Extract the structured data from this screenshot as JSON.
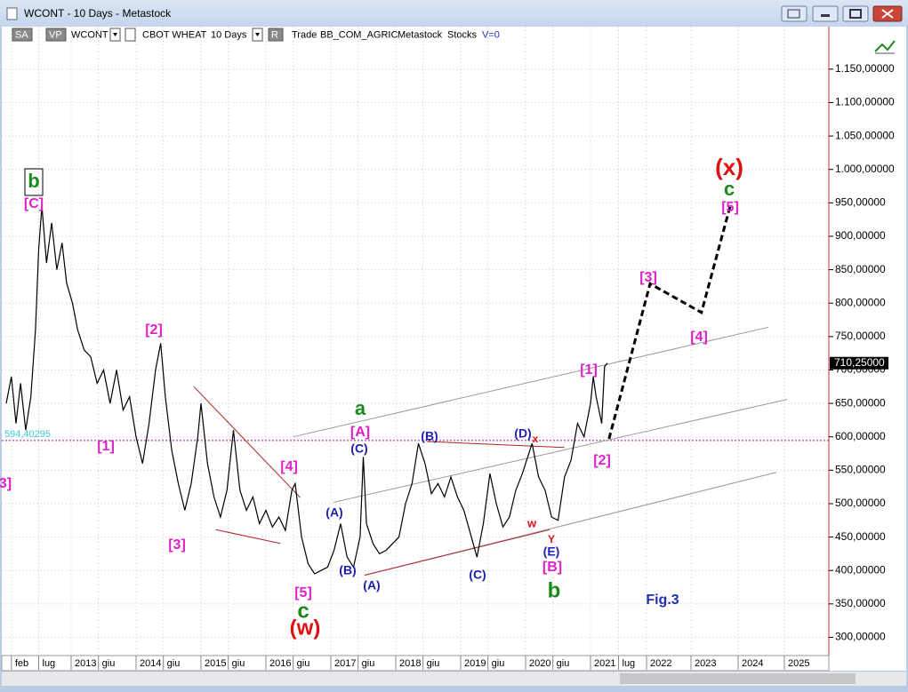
{
  "window_title": "WCONT - 10 Days - Metastock",
  "toolbar": {
    "items": [
      "SA",
      "VP",
      "WCONT",
      "CBOT WHEAT",
      "10 Days",
      "R",
      "Trade",
      "BB_COM_AGRIC",
      "Metastock",
      "Stocks",
      "V=0"
    ]
  },
  "chart_data": {
    "type": "line",
    "color": "#000000",
    "x": [
      2012.0,
      2012.08,
      2012.15,
      2012.22,
      2012.3,
      2012.38,
      2012.45,
      2012.5,
      2012.55,
      2012.62,
      2012.7,
      2012.78,
      2012.86,
      2012.93,
      2013.02,
      2013.1,
      2013.2,
      2013.3,
      2013.4,
      2013.5,
      2013.6,
      2013.7,
      2013.8,
      2013.9,
      2014.0,
      2014.1,
      2014.2,
      2014.3,
      2014.38,
      2014.45,
      2014.55,
      2014.65,
      2014.75,
      2014.85,
      2014.95,
      2015.0,
      2015.1,
      2015.2,
      2015.3,
      2015.4,
      2015.5,
      2015.6,
      2015.7,
      2015.8,
      2015.9,
      2016.0,
      2016.1,
      2016.2,
      2016.3,
      2016.4,
      2016.45,
      2016.55,
      2016.65,
      2016.75,
      2016.85,
      2016.95,
      2017.05,
      2017.15,
      2017.25,
      2017.35,
      2017.45,
      2017.5,
      2017.55,
      2017.65,
      2017.75,
      2017.85,
      2017.95,
      2018.05,
      2018.15,
      2018.25,
      2018.35,
      2018.45,
      2018.55,
      2018.65,
      2018.75,
      2018.85,
      2018.95,
      2019.05,
      2019.15,
      2019.25,
      2019.35,
      2019.45,
      2019.55,
      2019.65,
      2019.75,
      2019.85,
      2019.95,
      2020.0,
      2020.1,
      2020.2,
      2020.3,
      2020.4,
      2020.5,
      2020.6,
      2020.7,
      2020.8,
      2020.9,
      2021.0,
      2021.05,
      2021.1,
      2021.15,
      2021.2,
      2021.25,
      2021.3
    ],
    "values": [
      650,
      690,
      620,
      680,
      610,
      660,
      760,
      880,
      945,
      860,
      920,
      850,
      890,
      830,
      800,
      760,
      730,
      720,
      680,
      700,
      650,
      700,
      640,
      660,
      600,
      560,
      620,
      700,
      740,
      660,
      580,
      530,
      490,
      530,
      600,
      650,
      560,
      510,
      480,
      520,
      610,
      520,
      490,
      510,
      470,
      490,
      465,
      480,
      460,
      520,
      530,
      450,
      410,
      395,
      400,
      405,
      430,
      470,
      420,
      405,
      450,
      570,
      470,
      440,
      425,
      430,
      440,
      450,
      500,
      530,
      590,
      560,
      515,
      530,
      510,
      540,
      510,
      490,
      455,
      420,
      470,
      545,
      500,
      465,
      480,
      520,
      545,
      560,
      590,
      540,
      520,
      480,
      475,
      540,
      565,
      620,
      600,
      650,
      690,
      660,
      640,
      620,
      705,
      710.25
    ],
    "xlim": [
      2011.9,
      2025.85
    ],
    "xticks": [
      {
        "value": 2012.08,
        "label": "feb"
      },
      {
        "value": 2012.5,
        "label": "lug"
      },
      2013,
      {
        "value": 2013.42,
        "label": "giu"
      },
      2014,
      {
        "value": 2014.42,
        "label": "giu"
      },
      2015,
      {
        "value": 2015.42,
        "label": "giu"
      },
      2016,
      {
        "value": 2016.42,
        "label": "giu"
      },
      2017,
      {
        "value": 2017.42,
        "label": "giu"
      },
      2018,
      {
        "value": 2018.42,
        "label": "giu"
      },
      2019,
      {
        "value": 2019.42,
        "label": "giu"
      },
      2020,
      {
        "value": 2020.42,
        "label": "giu"
      },
      2021,
      {
        "value": 2021.5,
        "label": "lug"
      },
      2022,
      2023,
      2024,
      2025
    ],
    "ylim": [
      272.7,
      1213.6
    ],
    "yticks": [
      {
        "value": 300,
        "label": "300,00000"
      },
      {
        "value": 350,
        "label": "350,00000"
      },
      {
        "value": 400,
        "label": "400,00000"
      },
      {
        "value": 450,
        "label": "450,00000"
      },
      {
        "value": 500,
        "label": "500,00000"
      },
      {
        "value": 550,
        "label": "550,00000"
      },
      {
        "value": 600,
        "label": "600,00000"
      },
      {
        "value": 650,
        "label": "650,00000"
      },
      {
        "value": 700,
        "label": "700,00000"
      },
      {
        "value": 750,
        "label": "750,00000"
      },
      {
        "value": 800,
        "label": "800,00000"
      },
      {
        "value": 850,
        "label": "850,00000"
      },
      {
        "value": 900,
        "label": "900,00000"
      },
      {
        "value": 950,
        "label": "950,00000"
      },
      {
        "value": 1000,
        "label": "1.000,00000"
      },
      {
        "value": 1050,
        "label": "1.050,00000"
      },
      {
        "value": 1100,
        "label": "1.100,00000"
      },
      {
        "value": 1150,
        "label": "1.150,00000"
      }
    ],
    "grid": true,
    "last_price": {
      "value": 710.25,
      "label": "710,25000"
    },
    "reference_line": {
      "value": 594.40295,
      "label": "594,40295",
      "color": "#8b1a8b"
    },
    "forecast": {
      "x": [
        2021.33,
        2022.08,
        2023.22,
        2023.83
      ],
      "values": [
        597,
        829,
        786,
        945
      ],
      "color": "#000000"
    },
    "lines": [
      {
        "x": [
          2016.42,
          2024.66
        ],
        "values": [
          600,
          764
        ],
        "color": "#9a9a9a"
      },
      {
        "x": [
          2017.04,
          2025.06
        ],
        "values": [
          502,
          656
        ],
        "color": "#9a9a9a"
      },
      {
        "x": [
          2017.52,
          2024.83
        ],
        "values": [
          393,
          547
        ],
        "color": "#9a9a9a"
      },
      {
        "x": [
          2014.89,
          2016.53
        ],
        "values": [
          675,
          509
        ],
        "color": "#b22222"
      },
      {
        "x": [
          2015.23,
          2016.22
        ],
        "values": [
          461,
          440.5
        ],
        "color": "#b22222"
      },
      {
        "x": [
          2017.52,
          2020.37
        ],
        "values": [
          393,
          461
        ],
        "color": "#b22222"
      },
      {
        "x": [
          2018.48,
          2020.6
        ],
        "values": [
          593,
          584
        ],
        "color": "#b22222"
      }
    ],
    "annotations": [
      {
        "text": "b",
        "color": "#1a8a1a"
      },
      {
        "text": "[C]",
        "color": "#e020c8"
      },
      {
        "text": "[2]",
        "color": "#e020c8"
      },
      {
        "text": "[1]",
        "color": "#e020c8"
      },
      {
        "text": "[3]",
        "color": "#e020c8"
      },
      {
        "text": "3]",
        "color": "#e020c8"
      },
      {
        "text": "[4]",
        "color": "#e020c8"
      },
      {
        "text": "[5]",
        "color": "#e020c8"
      },
      {
        "text": "c",
        "color": "#1a8a1a"
      },
      {
        "text": "(w)",
        "color": "#e01010"
      },
      {
        "text": "a",
        "color": "#1a8a1a"
      },
      {
        "text": "[A]",
        "color": "#e020c8"
      },
      {
        "text": "(C)",
        "color": "#2020b0"
      },
      {
        "text": "(A)",
        "color": "#2020b0"
      },
      {
        "text": "(B)",
        "color": "#2020b0"
      },
      {
        "text": "(A)",
        "color": "#2020b0"
      },
      {
        "text": "(B)",
        "color": "#2020b0"
      },
      {
        "text": "(C)",
        "color": "#2020b0"
      },
      {
        "text": "(D)",
        "color": "#2020b0"
      },
      {
        "text": "x",
        "color": "#e01010"
      },
      {
        "text": "w",
        "color": "#e01010"
      },
      {
        "text": "Y",
        "color": "#e01010"
      },
      {
        "text": "(E)",
        "color": "#2020b0"
      },
      {
        "text": "[B]",
        "color": "#e020c8"
      },
      {
        "text": "b",
        "color": "#1a8a1a"
      },
      {
        "text": "[1]",
        "color": "#e020c8"
      },
      {
        "text": "[2]",
        "color": "#e020c8"
      },
      {
        "text": "[3]",
        "color": "#e020c8"
      },
      {
        "text": "[4]",
        "color": "#e020c8"
      },
      {
        "text": "(x)",
        "color": "#e01010"
      },
      {
        "text": "c",
        "color": "#1a8a1a"
      },
      {
        "text": "[5]",
        "color": "#e020c8"
      },
      {
        "text": "Fig.3",
        "color": "#2030b0"
      }
    ]
  }
}
